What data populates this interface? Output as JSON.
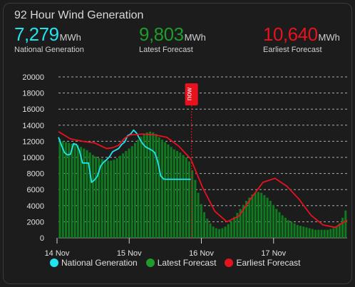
{
  "title": "92 Hour Wind Generation",
  "stats": {
    "national": {
      "value": "7,279",
      "unit": "MWh",
      "label": "National Generation",
      "color": "#22e4f0"
    },
    "latest": {
      "value": "9,803",
      "unit": "MWh",
      "label": "Latest Forecast",
      "color": "#1f9b2a"
    },
    "earliest": {
      "value": "10,640",
      "unit": "MWh",
      "label": "Earliest Forecast",
      "color": "#e8121f"
    }
  },
  "now_label": "now",
  "chart_data": {
    "type": "bar",
    "y_ticks": [
      0,
      2000,
      4000,
      6000,
      8000,
      10000,
      12000,
      14000,
      16000,
      18000,
      20000
    ],
    "ylim": [
      0,
      20000
    ],
    "x_ticks": [
      "14 Nov",
      "15 Nov",
      "16 Nov",
      "17 Nov"
    ],
    "x_hours_range": [
      0,
      96
    ],
    "now_hour": 44,
    "grid": true,
    "legend_position": "bottom",
    "series": [
      {
        "name": "Latest Forecast",
        "kind": "bar",
        "color": "#0f7a1f",
        "values": [
          12300,
          12000,
          11900,
          11800,
          11700,
          11600,
          11500,
          11300,
          11100,
          10900,
          10600,
          10300,
          10100,
          9900,
          9800,
          9700,
          9600,
          9600,
          9700,
          9900,
          10200,
          10500,
          10800,
          11100,
          11400,
          11800,
          12200,
          12600,
          12900,
          13100,
          13200,
          13100,
          12900,
          12500,
          12200,
          11900,
          11600,
          11300,
          11000,
          10800,
          10600,
          10300,
          10000,
          9500,
          8400,
          7200,
          5600,
          4200,
          3200,
          2400,
          1800,
          1400,
          1200,
          1100,
          1200,
          1400,
          1700,
          2100,
          2600,
          3100,
          3600,
          4100,
          4600,
          5000,
          5400,
          5600,
          5700,
          5600,
          5300,
          5000,
          4600,
          4100,
          3600,
          3200,
          2800,
          2500,
          2200,
          2000,
          1800,
          1600,
          1500,
          1400,
          1300,
          1200,
          1100,
          1000,
          1000,
          1000,
          1000,
          1000,
          1100,
          1200,
          1400,
          1800,
          2500,
          3400
        ]
      },
      {
        "name": "National Generation",
        "kind": "line",
        "color": "#22e4f0",
        "x": [
          0,
          1,
          2,
          3,
          4,
          5,
          6,
          7,
          8,
          9,
          10,
          11,
          12,
          13,
          14,
          15,
          16,
          17,
          18,
          19,
          20,
          21,
          22,
          23,
          24,
          25,
          26,
          27,
          28,
          29,
          30,
          31,
          32,
          33,
          34,
          35,
          36,
          37,
          38,
          39,
          40,
          41,
          42,
          43,
          44
        ],
        "values": [
          12500,
          11500,
          10600,
          10300,
          10400,
          11700,
          11600,
          10800,
          9300,
          9300,
          9300,
          6900,
          7200,
          7700,
          8900,
          9400,
          9700,
          10100,
          10700,
          10900,
          11100,
          11600,
          11900,
          12700,
          12900,
          13400,
          13000,
          12300,
          11700,
          11300,
          11100,
          10900,
          10600,
          9500,
          7700,
          7300,
          7279,
          7279,
          7279,
          7279,
          7279,
          7279,
          7279,
          7279,
          7279
        ]
      },
      {
        "name": "Earliest Forecast",
        "kind": "line",
        "color": "#e8121f",
        "x": [
          0,
          4,
          8,
          12,
          16,
          18,
          20,
          22,
          24,
          28,
          32,
          36,
          40,
          44,
          48,
          52,
          56,
          60,
          64,
          68,
          72,
          76,
          80,
          84,
          88,
          92,
          96
        ],
        "values": [
          13200,
          12300,
          12000,
          11800,
          11100,
          11200,
          11500,
          12400,
          12800,
          12900,
          12800,
          12500,
          11400,
          9800,
          6200,
          3300,
          2000,
          2700,
          4900,
          6900,
          7400,
          6400,
          4800,
          2800,
          1600,
          1300,
          2200
        ]
      }
    ]
  },
  "legend": [
    "National Generation",
    "Latest Forecast",
    "Earliest Forecast"
  ]
}
